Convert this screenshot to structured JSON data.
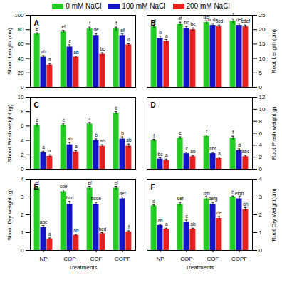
{
  "chart_data": [
    {
      "type": "bar",
      "panel": "A",
      "y_label": "Shoot Length (cm)",
      "categories": [
        "NP",
        "COP",
        "COF",
        "COPF"
      ],
      "ylim": [
        0,
        100
      ],
      "yticks": [
        0,
        20,
        40,
        60,
        80,
        100
      ],
      "tick_labels": "y",
      "legend": "top",
      "series": [
        {
          "name": "0 mM NaCl",
          "color": "#22cc22",
          "values": [
            74,
            77,
            81,
            81
          ],
          "errors": [
            1.5,
            2,
            2.5,
            2.5
          ],
          "letters": [
            "e",
            "ef",
            "f",
            "f"
          ]
        },
        {
          "name": "100 mM NaCl",
          "color": "#1414c8",
          "values": [
            42,
            56,
            72,
            72
          ],
          "errors": [
            2,
            3,
            2.5,
            2
          ],
          "letters": [
            "ab",
            "c",
            "de",
            "ef"
          ]
        },
        {
          "name": "200 mM NaCl",
          "color": "#e82020",
          "values": [
            31,
            42,
            46,
            59
          ],
          "errors": [
            2,
            1.5,
            2,
            1.5
          ],
          "letters": [
            "a",
            "ab",
            "bc",
            "d"
          ]
        }
      ]
    },
    {
      "type": "bar",
      "panel": "B",
      "y_label": "Root Length (cm)",
      "categories": [
        "NP",
        "COP",
        "COF",
        "COPF"
      ],
      "ylim": [
        0,
        25
      ],
      "yticks": [
        0,
        5,
        10,
        15,
        20,
        25
      ],
      "tick_labels": "y",
      "series": [
        {
          "name": "0 mM NaCl",
          "color": "#22cc22",
          "values": [
            21,
            22,
            22.5,
            23
          ],
          "errors": [
            0.6,
            0.6,
            0.6,
            0.8
          ],
          "letters": [
            "ef",
            "ef",
            "def",
            "f"
          ]
        },
        {
          "name": "100 mM NaCl",
          "color": "#1414c8",
          "values": [
            17,
            20.5,
            21.5,
            21.5
          ],
          "errors": [
            0.8,
            0.6,
            0.6,
            0.6
          ],
          "letters": [
            "b",
            "bc",
            "bcde",
            "def"
          ]
        },
        {
          "name": "200 mM NaCl",
          "color": "#e82020",
          "values": [
            16,
            20,
            21,
            21
          ],
          "errors": [
            0.6,
            0.6,
            0.6,
            0.6
          ],
          "letters": [
            "a",
            "bc",
            "bcd",
            "cdef"
          ]
        }
      ]
    },
    {
      "type": "bar",
      "panel": "C",
      "y_label": "Shoot Fresh weight (g)",
      "categories": [
        "NP",
        "COP",
        "COF",
        "COPF"
      ],
      "ylim": [
        0,
        10
      ],
      "yticks": [
        0,
        2,
        4,
        6,
        8,
        10
      ],
      "tick_labels": "y",
      "series": [
        {
          "name": "0 mM NaCl",
          "color": "#22cc22",
          "values": [
            6.1,
            6.1,
            6.3,
            7.8
          ],
          "errors": [
            0.2,
            0.2,
            0.2,
            0.2
          ],
          "letters": [
            "c",
            "c",
            "c",
            "d"
          ]
        },
        {
          "name": "100 mM NaCl",
          "color": "#1414c8",
          "values": [
            2.3,
            3.4,
            4.0,
            4.2
          ],
          "errors": [
            0.2,
            0.3,
            0.2,
            0.3
          ],
          "letters": [
            "a",
            "ab",
            "b",
            "b"
          ]
        },
        {
          "name": "200 mM NaCl",
          "color": "#e82020",
          "values": [
            1.8,
            2.4,
            3.2,
            3.2
          ],
          "errors": [
            0.2,
            0.2,
            0.2,
            0.3
          ],
          "letters": [
            "a",
            "a",
            "ab",
            "ab"
          ]
        }
      ]
    },
    {
      "type": "bar",
      "panel": "D",
      "y_label": "Root Fresh weight(g)",
      "categories": [
        "NP",
        "COP",
        "COF",
        "COPF"
      ],
      "ylim": [
        0,
        12
      ],
      "yticks": [
        0,
        2,
        4,
        6,
        8,
        10,
        12
      ],
      "tick_labels": "y",
      "series": [
        {
          "name": "0 mM NaCl",
          "color": "#22cc22",
          "values": [
            4.8,
            5.2,
            5.5,
            5.2
          ],
          "errors": [
            0.2,
            0.2,
            0.2,
            0.3
          ],
          "letters": [
            "f",
            "e",
            "f",
            "f"
          ]
        },
        {
          "name": "100 mM NaCl",
          "color": "#1414c8",
          "values": [
            1.7,
            2.6,
            2.6,
            3.1
          ],
          "errors": [
            0.2,
            0.2,
            0.2,
            0.3
          ],
          "letters": [
            "bc",
            "c",
            "abc",
            "d"
          ]
        },
        {
          "name": "200 mM NaCl",
          "color": "#e82020",
          "values": [
            1.5,
            2.1,
            1.8,
            2.1
          ],
          "errors": [
            0.2,
            0.2,
            0.2,
            0.2
          ],
          "letters": [
            "a",
            "ab",
            "a",
            "abc"
          ]
        }
      ]
    },
    {
      "type": "bar",
      "panel": "E",
      "y_label": "Shoot Dry weight (g)",
      "x_label": "Treatments",
      "categories": [
        "NP",
        "COP",
        "COF",
        "COPF"
      ],
      "ylim": [
        0,
        4
      ],
      "yticks": [
        0,
        1,
        2,
        3,
        4
      ],
      "series": [
        {
          "name": "0 mM NaCl",
          "color": "#22cc22",
          "values": [
            3.5,
            3.3,
            3.5,
            3.5
          ],
          "errors": [
            0.1,
            0.1,
            0.1,
            0.1
          ],
          "letters": [
            "ef",
            "cde",
            "ef",
            "ef"
          ]
        },
        {
          "name": "100 mM NaCl",
          "color": "#1414c8",
          "values": [
            1.3,
            2.6,
            2.6,
            2.9
          ],
          "errors": [
            0.1,
            0.15,
            0.1,
            0.1
          ],
          "letters": [
            "abc",
            "bcd",
            "bcde",
            "def"
          ]
        },
        {
          "name": "200 mM NaCl",
          "color": "#e82020",
          "values": [
            0.65,
            0.85,
            0.95,
            1.05
          ],
          "errors": [
            0.05,
            0.05,
            0.05,
            0.05
          ],
          "letters": [
            "a",
            "ab",
            "bcd",
            "f"
          ]
        }
      ]
    },
    {
      "type": "bar",
      "panel": "F",
      "y_label": "Root Dry Weight(cm)",
      "x_label": "Treatments",
      "categories": [
        "NP",
        "COP",
        "COF",
        "COPF"
      ],
      "ylim": [
        0,
        4
      ],
      "yticks": [
        0,
        1,
        2,
        3,
        4
      ],
      "series": [
        {
          "name": "0 mM NaCl",
          "color": "#22cc22",
          "values": [
            2.5,
            2.6,
            2.9,
            3.0
          ],
          "errors": [
            0.05,
            0.1,
            0.1,
            0.05
          ],
          "letters": [
            "d",
            "def",
            "fgh",
            "h"
          ]
        },
        {
          "name": "100 mM NaCl",
          "color": "#1414c8",
          "values": [
            1.4,
            1.6,
            2.6,
            2.9
          ],
          "errors": [
            0.05,
            0.1,
            0.1,
            0.1
          ],
          "letters": [
            "ab",
            "c",
            "defg",
            "efgh"
          ]
        },
        {
          "name": "200 mM NaCl",
          "color": "#e82020",
          "values": [
            1.2,
            1.2,
            1.8,
            2.3
          ],
          "errors": [
            0.05,
            0.05,
            0.1,
            0.1
          ],
          "letters": [
            "a",
            "ab",
            "de",
            "gh"
          ]
        }
      ]
    }
  ]
}
